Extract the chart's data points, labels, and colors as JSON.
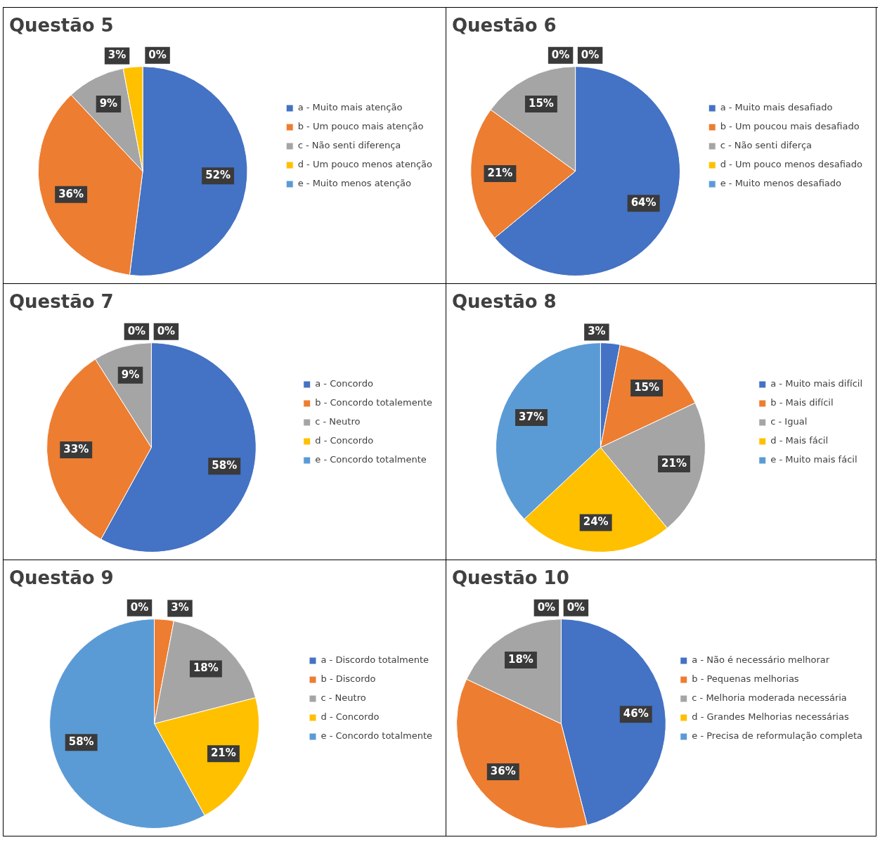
{
  "chart_data": [
    {
      "type": "pie",
      "title": "Questão 5",
      "legend": "right",
      "categories": [
        "a - Muito mais atenção",
        "b - Um pouco mais atenção",
        "c - Não senti diferença",
        "d - Um pouco menos atenção",
        "e - Muito menos atenção"
      ],
      "values": [
        52,
        36,
        9,
        3,
        0
      ],
      "value_labels": [
        "52%",
        "36%",
        "9%",
        "3%",
        "0%"
      ],
      "colors": [
        "#4472c4",
        "#ed7d31",
        "#a5a5a5",
        "#ffc000",
        "#5b9bd5"
      ]
    },
    {
      "type": "pie",
      "title": "Questão 6",
      "legend": "right",
      "categories": [
        "a - Muito mais desafiado",
        "b - Um poucou mais desafiado",
        "c - Não senti diferça",
        "d - Um pouco menos desafiado",
        "e - Muito menos desafiado"
      ],
      "values": [
        64,
        21,
        15,
        0,
        0
      ],
      "value_labels": [
        "64%",
        "21%",
        "15%",
        "0%",
        "0%"
      ],
      "colors": [
        "#4472c4",
        "#ed7d31",
        "#a5a5a5",
        "#ffc000",
        "#5b9bd5"
      ]
    },
    {
      "type": "pie",
      "title": "Questão 7",
      "legend": "right",
      "categories": [
        "a - Concordo",
        "b - Concordo totalemente",
        "c - Neutro",
        "d - Concordo",
        "e - Concordo totalmente"
      ],
      "values": [
        58,
        33,
        9,
        0,
        0
      ],
      "value_labels": [
        "58%",
        "33%",
        "9%",
        "0%",
        "0%"
      ],
      "colors": [
        "#4472c4",
        "#ed7d31",
        "#a5a5a5",
        "#ffc000",
        "#5b9bd5"
      ]
    },
    {
      "type": "pie",
      "title": "Questão 8",
      "legend": "right",
      "categories": [
        "a - Muito mais difícil",
        "b - Mais difícil",
        "c - Igual",
        "d - Mais fácil",
        "e - Muito mais fácil"
      ],
      "values": [
        3,
        15,
        21,
        24,
        37
      ],
      "value_labels": [
        "3%",
        "15%",
        "21%",
        "24%",
        "37%"
      ],
      "colors": [
        "#4472c4",
        "#ed7d31",
        "#a5a5a5",
        "#ffc000",
        "#5b9bd5"
      ]
    },
    {
      "type": "pie",
      "title": "Questão 9",
      "legend": "right",
      "categories": [
        "a - Discordo totalmente",
        "b - Discordo",
        "c - Neutro",
        "d - Concordo",
        "e - Concordo totalmente"
      ],
      "values": [
        0,
        3,
        18,
        21,
        58
      ],
      "value_labels": [
        "0%",
        "3%",
        "18%",
        "21%",
        "58%"
      ],
      "colors": [
        "#4472c4",
        "#ed7d31",
        "#a5a5a5",
        "#ffc000",
        "#5b9bd5"
      ]
    },
    {
      "type": "pie",
      "title": "Questão 10",
      "legend": "right",
      "categories": [
        "a - Não é necessário melhorar",
        "b - Pequenas melhorias",
        "c - Melhoria moderada necessária",
        "d - Grandes Melhorias necessárias",
        "e - Precisa de reformulação completa"
      ],
      "values": [
        46,
        36,
        18,
        0,
        0
      ],
      "value_labels": [
        "46%",
        "36%",
        "18%",
        "0%",
        "0%"
      ],
      "colors": [
        "#4472c4",
        "#ed7d31",
        "#a5a5a5",
        "#ffc000",
        "#5b9bd5"
      ]
    }
  ]
}
